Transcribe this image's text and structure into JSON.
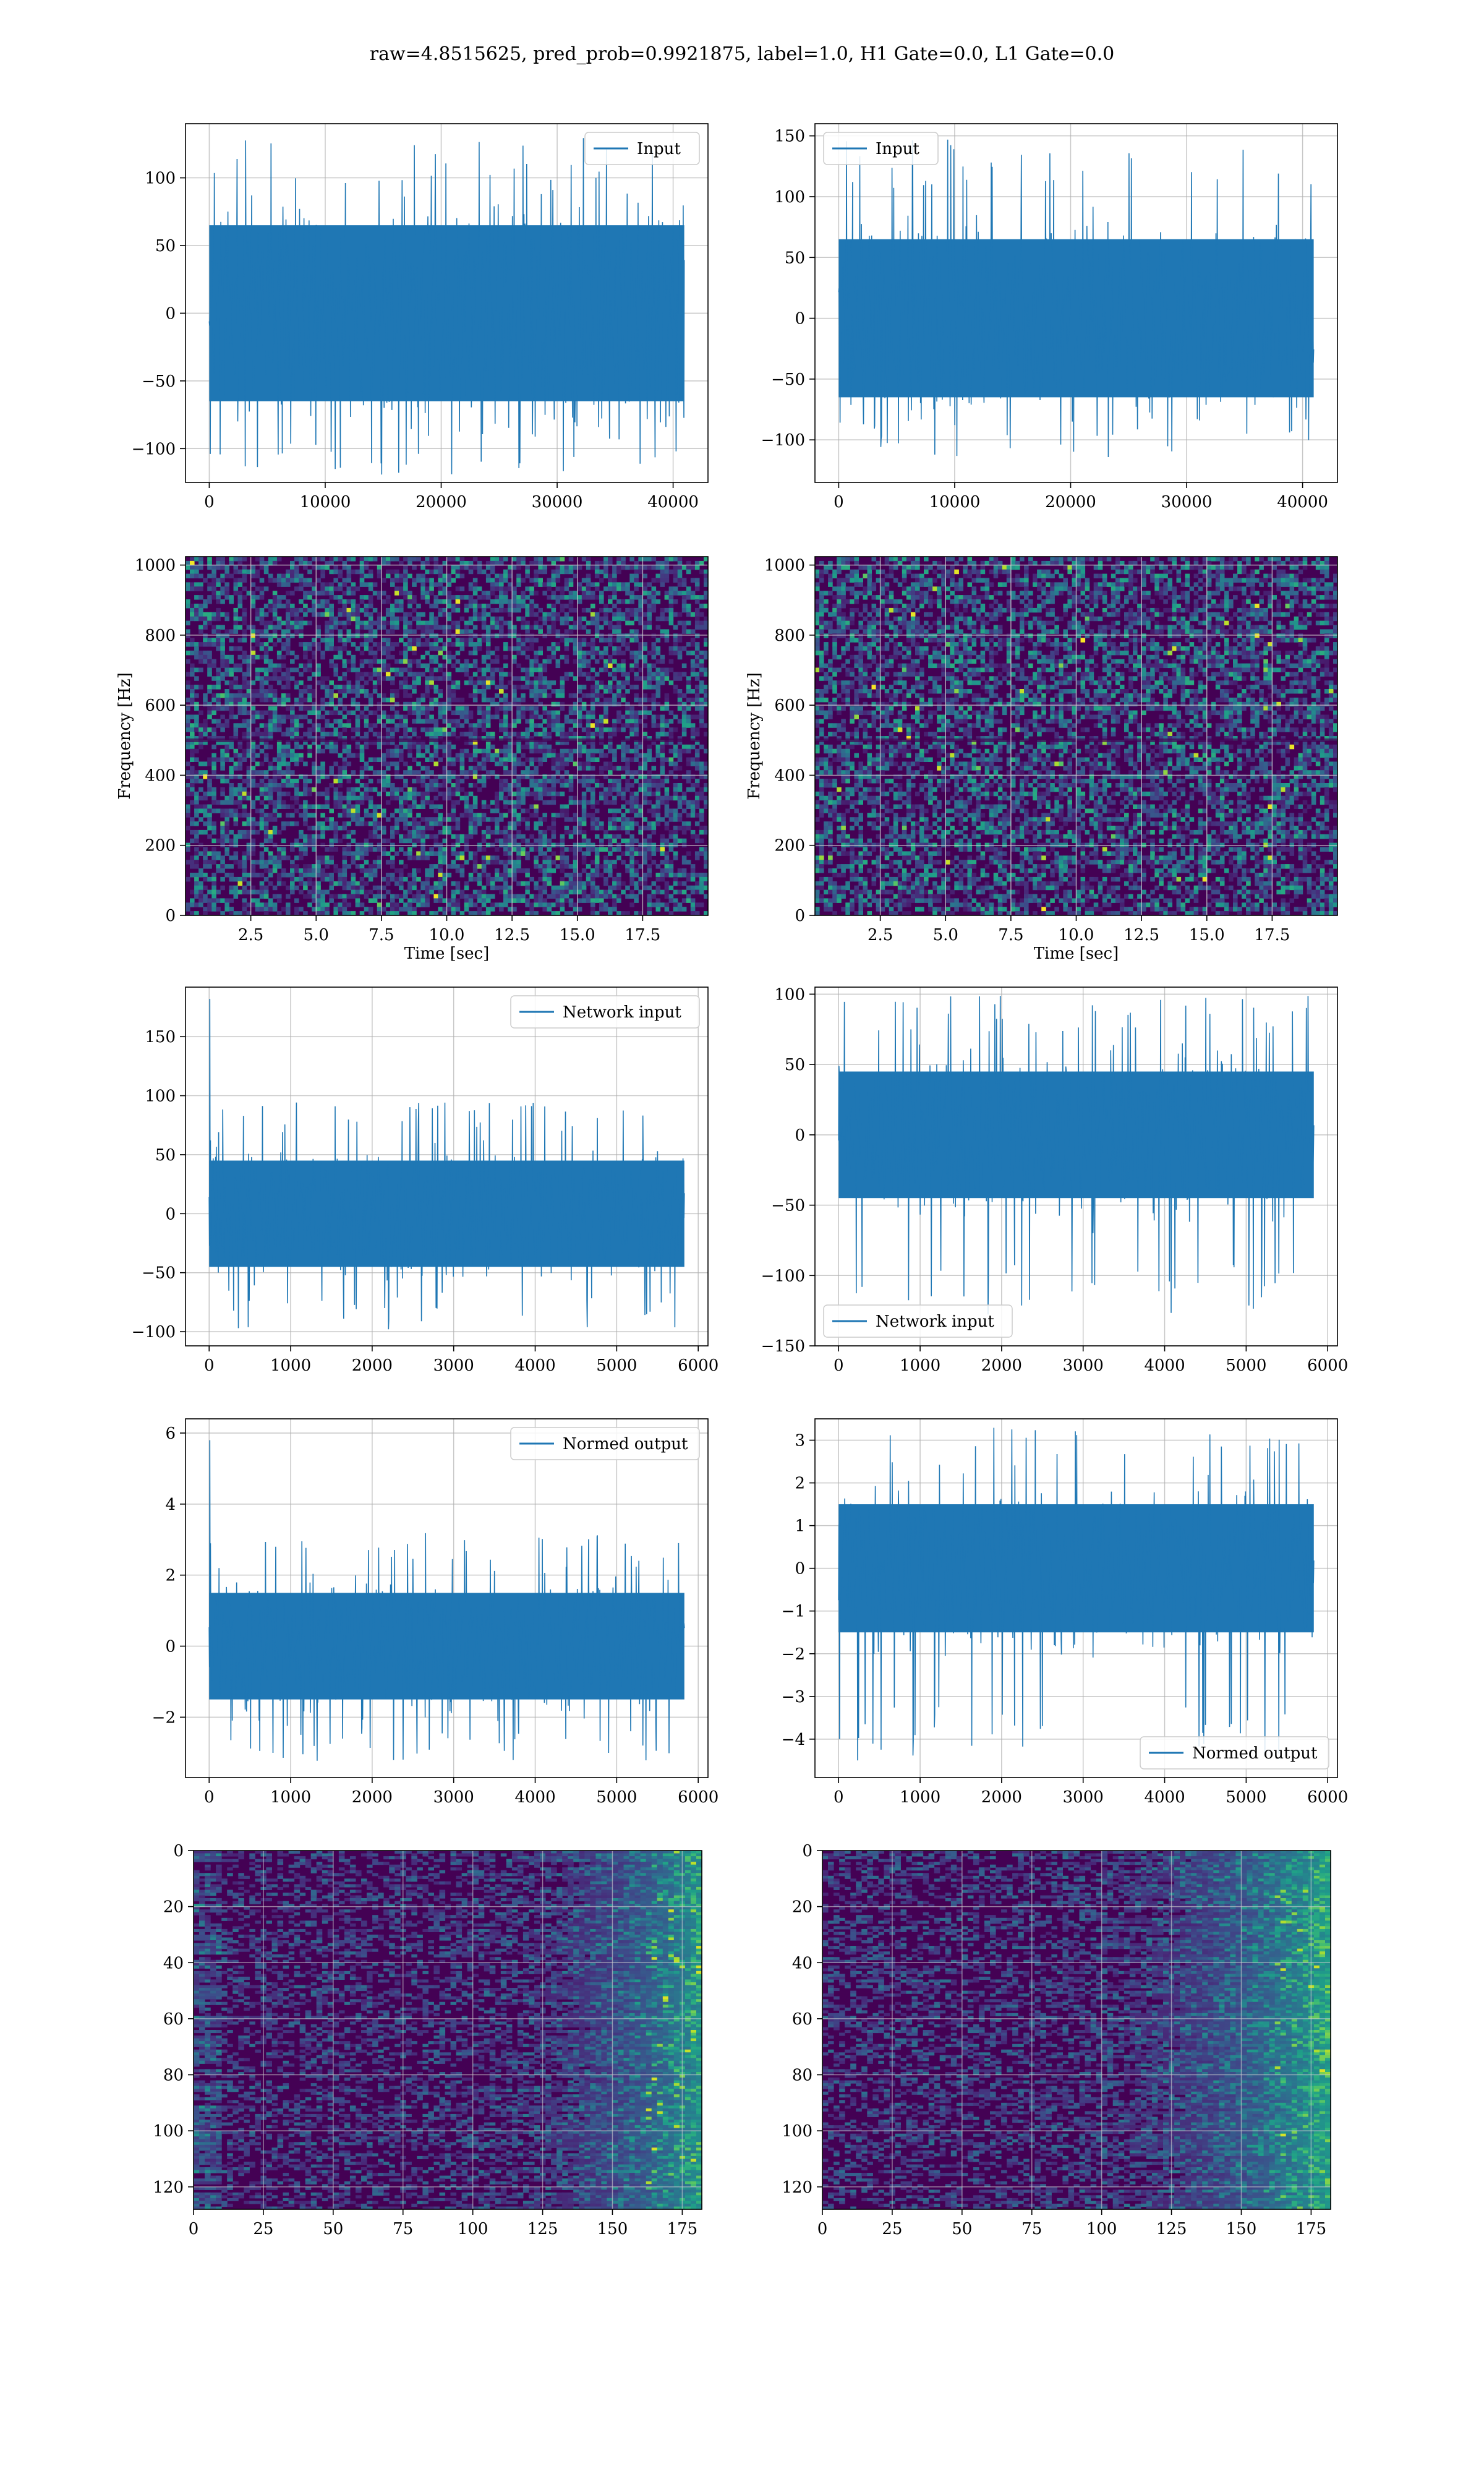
{
  "figure": {
    "suptitle": "raw=4.8515625, pred_prob=0.9921875, label=1.0, H1 Gate=0.0, L1 Gate=0.0"
  },
  "colors": {
    "line": "#1f77b4",
    "grid": "#b0b0b0",
    "viridis_dark": "#440154"
  },
  "chart_data": [
    {
      "id": "p00",
      "type": "line",
      "legend": "Input",
      "legend_loc": "upper right",
      "x_range": [
        0,
        40960
      ],
      "ylim": [
        -125,
        140
      ],
      "xlim": [
        -2048,
        43008
      ],
      "xticks": [
        0,
        10000,
        20000,
        30000,
        40000
      ],
      "xtick_labels": [
        "0",
        "10000",
        "20000",
        "30000",
        "40000"
      ],
      "yticks": [
        -100,
        -50,
        0,
        50,
        100
      ],
      "ytick_labels": [
        "−100",
        "−50",
        "0",
        "50",
        "100"
      ],
      "envelope": {
        "core": 65,
        "spike_max": 130,
        "spike_min": -120
      }
    },
    {
      "id": "p01",
      "type": "line",
      "legend": "Input",
      "legend_loc": "upper left",
      "x_range": [
        0,
        40960
      ],
      "ylim": [
        -135,
        160
      ],
      "xlim": [
        -2048,
        43008
      ],
      "xticks": [
        0,
        10000,
        20000,
        30000,
        40000
      ],
      "xtick_labels": [
        "0",
        "10000",
        "20000",
        "30000",
        "40000"
      ],
      "yticks": [
        -100,
        -50,
        0,
        50,
        100,
        150
      ],
      "ytick_labels": [
        "−100",
        "−50",
        "0",
        "50",
        "100",
        "150"
      ],
      "envelope": {
        "core": 65,
        "spike_max": 148,
        "spike_min": -115
      }
    },
    {
      "id": "p10",
      "type": "heatmap",
      "colormap": "viridis",
      "xlabel": "Time [sec]",
      "ylabel": "Frequency [Hz]",
      "xlim": [
        0,
        20
      ],
      "ylim": [
        0,
        1024
      ],
      "xticks": [
        2.5,
        5.0,
        7.5,
        10.0,
        12.5,
        15.0,
        17.5
      ],
      "xtick_labels": [
        "2.5",
        "5.0",
        "7.5",
        "10.0",
        "12.5",
        "15.0",
        "17.5"
      ],
      "yticks": [
        0,
        200,
        400,
        600,
        800,
        1000
      ],
      "ytick_labels": [
        "0",
        "200",
        "400",
        "600",
        "800",
        "1000"
      ]
    },
    {
      "id": "p11",
      "type": "heatmap",
      "colormap": "viridis",
      "xlabel": "Time [sec]",
      "ylabel": "Frequency [Hz]",
      "xlim": [
        0,
        20
      ],
      "ylim": [
        0,
        1024
      ],
      "xticks": [
        2.5,
        5.0,
        7.5,
        10.0,
        12.5,
        15.0,
        17.5
      ],
      "xtick_labels": [
        "2.5",
        "5.0",
        "7.5",
        "10.0",
        "12.5",
        "15.0",
        "17.5"
      ],
      "yticks": [
        0,
        200,
        400,
        600,
        800,
        1000
      ],
      "ytick_labels": [
        "0",
        "200",
        "400",
        "600",
        "800",
        "1000"
      ]
    },
    {
      "id": "p20",
      "type": "line",
      "legend": "Network input",
      "legend_loc": "upper right",
      "x_range": [
        0,
        5830
      ],
      "ylim": [
        -112,
        192
      ],
      "xlim": [
        -290,
        6120
      ],
      "xticks": [
        0,
        1000,
        2000,
        3000,
        4000,
        5000,
        6000
      ],
      "xtick_labels": [
        "0",
        "1000",
        "2000",
        "3000",
        "4000",
        "5000",
        "6000"
      ],
      "yticks": [
        -100,
        -50,
        0,
        50,
        100,
        150
      ],
      "ytick_labels": [
        "−100",
        "−50",
        "0",
        "50",
        "100",
        "150"
      ],
      "envelope": {
        "core": 45,
        "spike_max": 95,
        "spike_min": -98,
        "first_spike": 182
      }
    },
    {
      "id": "p21",
      "type": "line",
      "legend": "Network input",
      "legend_loc": "lower left",
      "x_range": [
        0,
        5830
      ],
      "ylim": [
        -150,
        105
      ],
      "xlim": [
        -290,
        6120
      ],
      "xticks": [
        0,
        1000,
        2000,
        3000,
        4000,
        5000,
        6000
      ],
      "xtick_labels": [
        "0",
        "1000",
        "2000",
        "3000",
        "4000",
        "5000",
        "6000"
      ],
      "yticks": [
        -150,
        -100,
        -50,
        0,
        50,
        100
      ],
      "ytick_labels": [
        "−150",
        "−100",
        "−50",
        "0",
        "50",
        "100"
      ],
      "envelope": {
        "core": 45,
        "spike_max": 100,
        "spike_min": -128
      }
    },
    {
      "id": "p30",
      "type": "line",
      "legend": "Normed output",
      "legend_loc": "upper right",
      "x_range": [
        0,
        5830
      ],
      "ylim": [
        -3.7,
        6.4
      ],
      "xlim": [
        -290,
        6120
      ],
      "xticks": [
        0,
        1000,
        2000,
        3000,
        4000,
        5000,
        6000
      ],
      "xtick_labels": [
        "0",
        "1000",
        "2000",
        "3000",
        "4000",
        "5000",
        "6000"
      ],
      "yticks": [
        -2,
        0,
        2,
        4,
        6
      ],
      "ytick_labels": [
        "−2",
        "0",
        "2",
        "4",
        "6"
      ],
      "envelope": {
        "core": 1.5,
        "spike_max": 3.2,
        "spike_min": -3.3,
        "first_spike": 5.8
      }
    },
    {
      "id": "p31",
      "type": "line",
      "legend": "Normed output",
      "legend_loc": "lower right",
      "x_range": [
        0,
        5830
      ],
      "ylim": [
        -4.9,
        3.5
      ],
      "xlim": [
        -290,
        6120
      ],
      "xticks": [
        0,
        1000,
        2000,
        3000,
        4000,
        5000,
        6000
      ],
      "xtick_labels": [
        "0",
        "1000",
        "2000",
        "3000",
        "4000",
        "5000",
        "6000"
      ],
      "yticks": [
        -4,
        -3,
        -2,
        -1,
        0,
        1,
        2,
        3
      ],
      "ytick_labels": [
        "−4",
        "−3",
        "−2",
        "−1",
        "0",
        "1",
        "2",
        "3"
      ],
      "envelope": {
        "core": 1.5,
        "spike_max": 3.3,
        "spike_min": -4.5
      }
    },
    {
      "id": "p40",
      "type": "heatmap",
      "colormap": "viridis",
      "origin": "upper",
      "xlim": [
        0,
        182
      ],
      "ylim": [
        128,
        0
      ],
      "xticks": [
        0,
        25,
        50,
        75,
        100,
        125,
        150,
        175
      ],
      "xtick_labels": [
        "0",
        "25",
        "50",
        "75",
        "100",
        "125",
        "150",
        "175"
      ],
      "yticks": [
        0,
        20,
        40,
        60,
        80,
        100,
        120
      ],
      "ytick_labels": [
        "0",
        "20",
        "40",
        "60",
        "80",
        "100",
        "120"
      ]
    },
    {
      "id": "p41",
      "type": "heatmap",
      "colormap": "viridis",
      "origin": "upper",
      "xlim": [
        0,
        182
      ],
      "ylim": [
        128,
        0
      ],
      "xticks": [
        0,
        25,
        50,
        75,
        100,
        125,
        150,
        175
      ],
      "xtick_labels": [
        "0",
        "25",
        "50",
        "75",
        "100",
        "125",
        "150",
        "175"
      ],
      "yticks": [
        0,
        20,
        40,
        60,
        80,
        100,
        120
      ],
      "ytick_labels": [
        "0",
        "20",
        "40",
        "60",
        "80",
        "100",
        "120"
      ]
    }
  ]
}
